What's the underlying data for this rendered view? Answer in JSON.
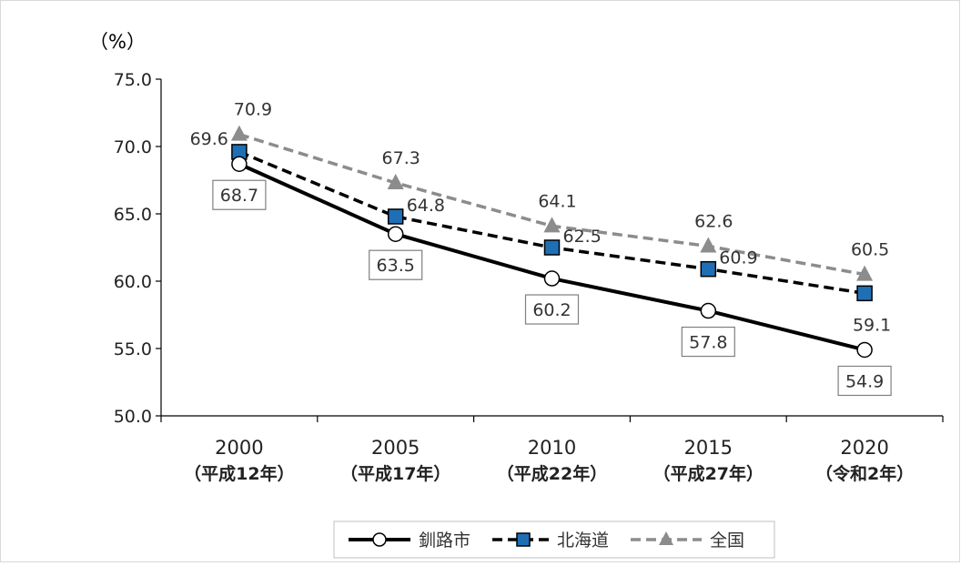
{
  "chart_data": {
    "type": "line",
    "unit_label": "（%）",
    "categories": [
      {
        "year": "2000",
        "era": "（平成12年）"
      },
      {
        "year": "2005",
        "era": "（平成17年）"
      },
      {
        "year": "2010",
        "era": "（平成22年）"
      },
      {
        "year": "2015",
        "era": "（平成27年）"
      },
      {
        "year": "2020",
        "era": "（令和2年）"
      }
    ],
    "ylim": [
      50.0,
      75.0
    ],
    "yticks": [
      "50.0",
      "55.0",
      "60.0",
      "65.0",
      "70.0",
      "75.0"
    ],
    "grid": false,
    "legend_position": "bottom",
    "series": [
      {
        "name": "釧路市",
        "values": [
          68.7,
          63.5,
          60.2,
          57.8,
          54.9
        ],
        "labels": [
          "68.7",
          "63.5",
          "60.2",
          "57.8",
          "54.9"
        ],
        "color": "#000000",
        "style": "solid",
        "marker": "circle"
      },
      {
        "name": "北海道",
        "values": [
          69.6,
          64.8,
          62.5,
          60.9,
          59.1
        ],
        "labels": [
          "69.6",
          "64.8",
          "62.5",
          "60.9",
          "59.1"
        ],
        "color": "#000000",
        "marker_color": "#1f6fb5",
        "style": "dashed",
        "marker": "square"
      },
      {
        "name": "全国",
        "values": [
          70.9,
          67.3,
          64.1,
          62.6,
          60.5
        ],
        "labels": [
          "70.9",
          "67.3",
          "64.1",
          "62.6",
          "60.5"
        ],
        "color": "#8c8c8c",
        "style": "dashed",
        "marker": "triangle"
      }
    ]
  }
}
